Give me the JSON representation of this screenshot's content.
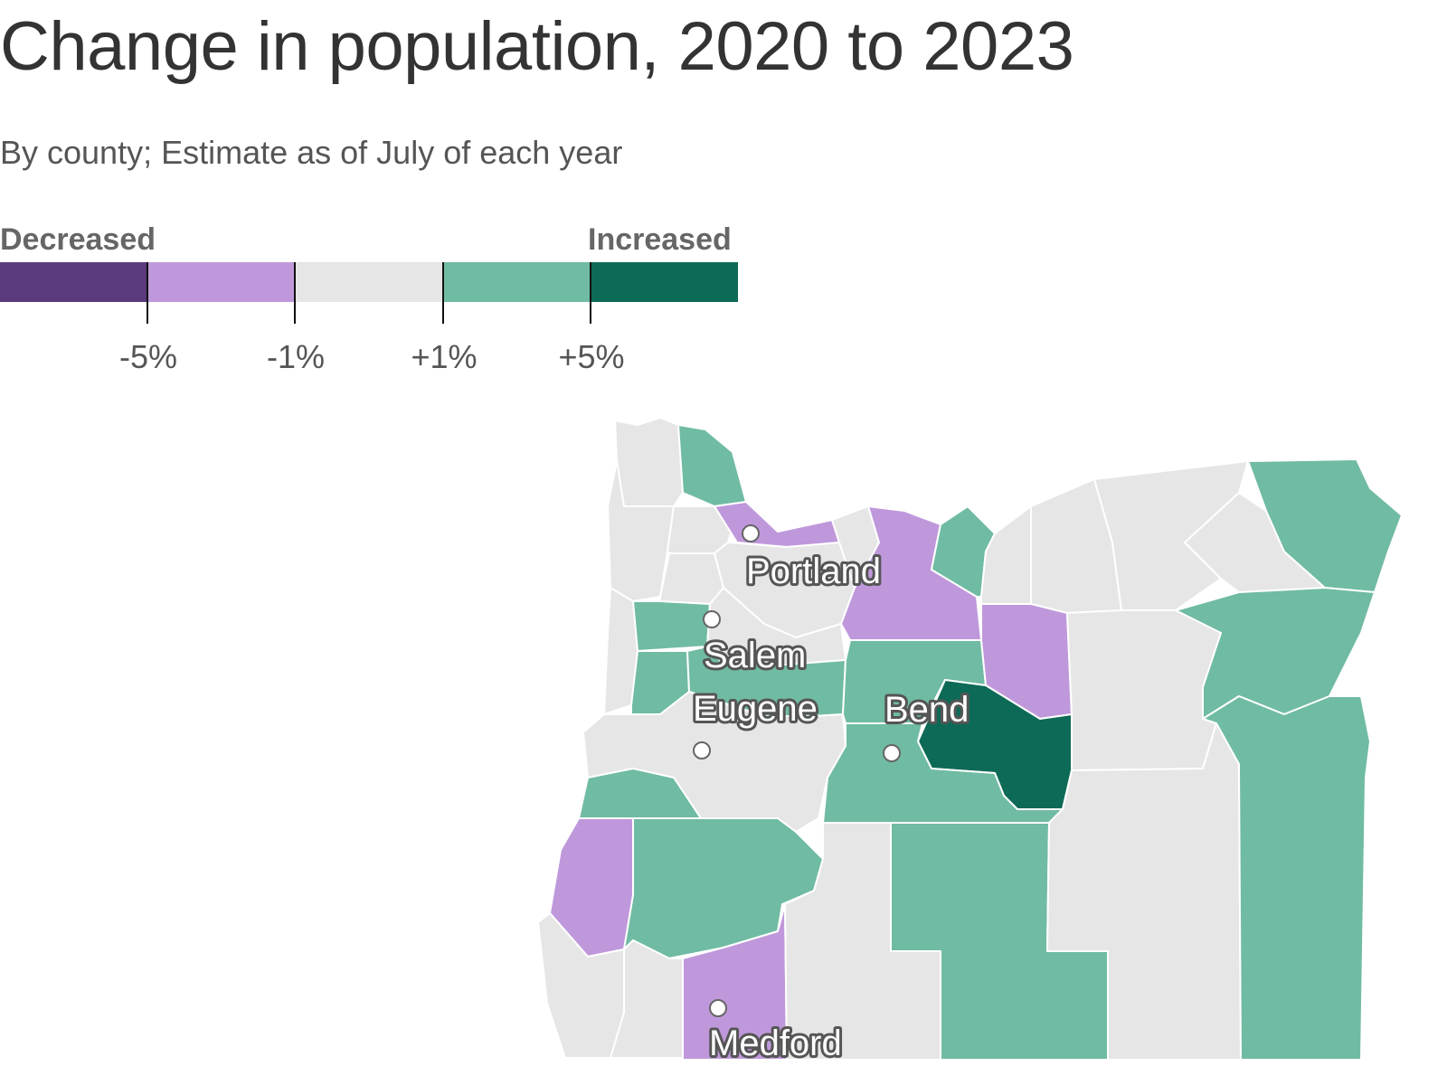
{
  "header": {
    "title": "Change in population, 2020 to 2023",
    "subtitle": "By county; Estimate as of July of each year"
  },
  "legend": {
    "low_label": "Decreased",
    "high_label": "Increased",
    "bins": [
      {
        "range": "below -5%",
        "color": "#5b3a7c"
      },
      {
        "range": "-5% to -1%",
        "color": "#bf98db"
      },
      {
        "range": "-1% to +1%",
        "color": "#e6e6e6"
      },
      {
        "range": "+1% to +5%",
        "color": "#70bba3"
      },
      {
        "range": "above +5%",
        "color": "#0d6a56"
      }
    ],
    "ticks": [
      "-5%",
      "-1%",
      "+1%",
      "+5%"
    ]
  },
  "map": {
    "region": "Oregon",
    "boundary_color": "#ffffff",
    "counties": [
      {
        "id": "clatsop",
        "bin": "-1% to +1%"
      },
      {
        "id": "columbia",
        "bin": "+1% to +5%"
      },
      {
        "id": "tillamook",
        "bin": "-1% to +1%"
      },
      {
        "id": "washington",
        "bin": "-1% to +1%"
      },
      {
        "id": "multnomah",
        "bin": "-5% to -1%"
      },
      {
        "id": "yamhill",
        "bin": "-1% to +1%"
      },
      {
        "id": "clackamas",
        "bin": "-1% to +1%"
      },
      {
        "id": "lincoln",
        "bin": "-1% to +1%"
      },
      {
        "id": "polk",
        "bin": "+1% to +5%"
      },
      {
        "id": "marion",
        "bin": "-1% to +1%"
      },
      {
        "id": "benton",
        "bin": "+1% to +5%"
      },
      {
        "id": "linn",
        "bin": "+1% to +5%"
      },
      {
        "id": "lane",
        "bin": "-1% to +1%"
      },
      {
        "id": "hood-river",
        "bin": "-1% to +1%"
      },
      {
        "id": "wasco",
        "bin": "-5% to -1%"
      },
      {
        "id": "sherman",
        "bin": "+1% to +5%"
      },
      {
        "id": "gilliam",
        "bin": "-1% to +1%"
      },
      {
        "id": "morrow",
        "bin": "-1% to +1%"
      },
      {
        "id": "umatilla",
        "bin": "-1% to +1%"
      },
      {
        "id": "union",
        "bin": "-1% to +1%"
      },
      {
        "id": "wallowa",
        "bin": "+1% to +5%"
      },
      {
        "id": "jefferson",
        "bin": "+1% to +5%"
      },
      {
        "id": "wheeler",
        "bin": "-5% to -1%"
      },
      {
        "id": "grant",
        "bin": "-1% to +1%"
      },
      {
        "id": "baker",
        "bin": "+1% to +5%"
      },
      {
        "id": "deschutes-north",
        "bin": "+1% to +5%"
      },
      {
        "id": "crook",
        "bin": "above +5%"
      },
      {
        "id": "deschutes",
        "bin": "+1% to +5%"
      },
      {
        "id": "douglas-coast",
        "bin": "+1% to +5%"
      },
      {
        "id": "coos",
        "bin": "-5% to -1%"
      },
      {
        "id": "douglas",
        "bin": "+1% to +5%"
      },
      {
        "id": "curry",
        "bin": "-1% to +1%"
      },
      {
        "id": "josephine",
        "bin": "-1% to +1%"
      },
      {
        "id": "jackson",
        "bin": "-5% to -1%"
      },
      {
        "id": "klamath",
        "bin": "-1% to +1%"
      },
      {
        "id": "lake",
        "bin": "+1% to +5%"
      },
      {
        "id": "harney",
        "bin": "-1% to +1%"
      },
      {
        "id": "malheur",
        "bin": "+1% to +5%"
      }
    ],
    "cities": [
      {
        "name": "Portland"
      },
      {
        "name": "Salem"
      },
      {
        "name": "Eugene"
      },
      {
        "name": "Bend"
      },
      {
        "name": "Medford"
      }
    ]
  }
}
